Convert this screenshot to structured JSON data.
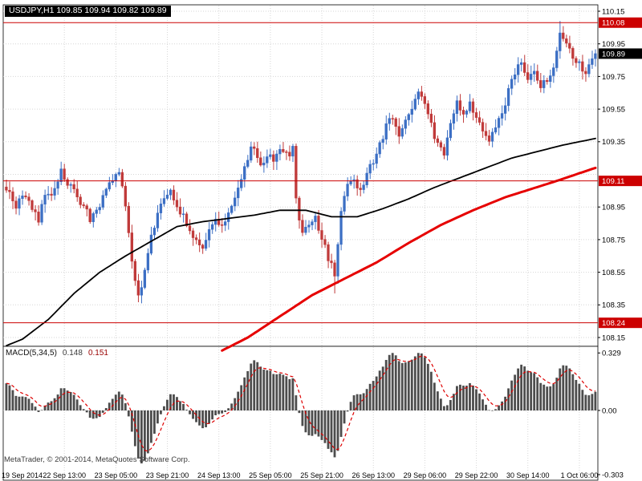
{
  "header": {
    "symbol_info": "USDJPY,H1 109.85 109.94 109.82 109.89"
  },
  "quote": {
    "symbol": "USDJPY",
    "period": "H1",
    "open": "109.85",
    "high": "109.94",
    "low": "109.82",
    "close": "109.89"
  },
  "footer": {
    "copyright": "MetaTrader, © 2001-2014, MetaQuotes Software Corp."
  },
  "colors": {
    "bull": "#3c6fc4",
    "bear": "#c03a3a",
    "ma_fast": "#000000",
    "ma_slow": "#e60000",
    "level": "#cc0000",
    "level_label_bg": "#cc0000",
    "current_label_bg": "#000000",
    "grid": "#d6d6d6",
    "histogram": "#4d4d4d",
    "signal": "#dd0000",
    "axis_text": "#000000",
    "panel_border": "#000000"
  },
  "chart_data": {
    "type": "candlestick",
    "symbol": "USDJPY",
    "timeframe": "H1",
    "bars": 184,
    "price_axis": {
      "min": 108.15,
      "max": 110.15,
      "tick_step": 0.2,
      "ticks": [
        110.15,
        109.95,
        109.75,
        109.55,
        109.35,
        109.15,
        108.95,
        108.75,
        108.55,
        108.35,
        108.15
      ]
    },
    "macd_axis": {
      "max": 0.329,
      "zero": 0.0,
      "min": -0.303,
      "labels": [
        "0.329",
        "0.00",
        "-0.303"
      ]
    },
    "time_labels": [
      "19 Sep 2014",
      "22 Sep 13:00",
      "23 Sep 05:00",
      "23 Sep 21:00",
      "24 Sep 13:00",
      "25 Sep 05:00",
      "25 Sep 21:00",
      "26 Sep 13:00",
      "29 Sep 06:00",
      "29 Sep 22:00",
      "30 Sep 14:00",
      "1 Oct 06:00"
    ],
    "gridline_bars": [
      18,
      34,
      50,
      66,
      82,
      98,
      114,
      130,
      146,
      162,
      178
    ],
    "levels": [
      {
        "price": 110.08,
        "label": "110.08"
      },
      {
        "price": 109.11,
        "label": "109.11"
      },
      {
        "price": 108.24,
        "label": "108.24"
      }
    ],
    "current_price": {
      "price": 109.89,
      "label": "109.89"
    },
    "close_anchors": [
      [
        0,
        109.05
      ],
      [
        3,
        108.96
      ],
      [
        5,
        109.02
      ],
      [
        8,
        108.95
      ],
      [
        10,
        108.88
      ],
      [
        12,
        109.03
      ],
      [
        14,
        109.0
      ],
      [
        17,
        109.16
      ],
      [
        19,
        109.1
      ],
      [
        21,
        109.04
      ],
      [
        23,
        108.98
      ],
      [
        26,
        108.88
      ],
      [
        29,
        108.96
      ],
      [
        32,
        109.1
      ],
      [
        35,
        109.16
      ],
      [
        37,
        108.95
      ],
      [
        39,
        108.62
      ],
      [
        41,
        108.4
      ],
      [
        43,
        108.56
      ],
      [
        45,
        108.76
      ],
      [
        47,
        108.9
      ],
      [
        49,
        109.0
      ],
      [
        51,
        109.06
      ],
      [
        53,
        108.96
      ],
      [
        55,
        108.9
      ],
      [
        57,
        108.8
      ],
      [
        59,
        108.73
      ],
      [
        61,
        108.68
      ],
      [
        63,
        108.8
      ],
      [
        65,
        108.88
      ],
      [
        67,
        108.82
      ],
      [
        69,
        108.9
      ],
      [
        71,
        109.0
      ],
      [
        73,
        109.1
      ],
      [
        75,
        109.26
      ],
      [
        77,
        109.33
      ],
      [
        79,
        109.2
      ],
      [
        81,
        109.28
      ],
      [
        83,
        109.24
      ],
      [
        85,
        109.31
      ],
      [
        87,
        109.27
      ],
      [
        89,
        109.3
      ],
      [
        90,
        108.98
      ],
      [
        92,
        108.78
      ],
      [
        94,
        108.83
      ],
      [
        96,
        108.88
      ],
      [
        98,
        108.76
      ],
      [
        100,
        108.63
      ],
      [
        102,
        108.55
      ],
      [
        104,
        108.92
      ],
      [
        106,
        109.1
      ],
      [
        108,
        109.13
      ],
      [
        110,
        109.05
      ],
      [
        112,
        109.16
      ],
      [
        114,
        109.22
      ],
      [
        116,
        109.33
      ],
      [
        118,
        109.45
      ],
      [
        120,
        109.5
      ],
      [
        122,
        109.4
      ],
      [
        124,
        109.48
      ],
      [
        126,
        109.56
      ],
      [
        128,
        109.68
      ],
      [
        130,
        109.58
      ],
      [
        132,
        109.45
      ],
      [
        134,
        109.32
      ],
      [
        136,
        109.28
      ],
      [
        138,
        109.46
      ],
      [
        140,
        109.58
      ],
      [
        142,
        109.52
      ],
      [
        144,
        109.58
      ],
      [
        146,
        109.5
      ],
      [
        148,
        109.42
      ],
      [
        150,
        109.35
      ],
      [
        152,
        109.43
      ],
      [
        154,
        109.52
      ],
      [
        156,
        109.66
      ],
      [
        158,
        109.78
      ],
      [
        160,
        109.86
      ],
      [
        162,
        109.72
      ],
      [
        164,
        109.78
      ],
      [
        166,
        109.68
      ],
      [
        168,
        109.73
      ],
      [
        170,
        109.82
      ],
      [
        172,
        110.02
      ],
      [
        174,
        109.96
      ],
      [
        176,
        109.88
      ],
      [
        178,
        109.82
      ],
      [
        180,
        109.78
      ],
      [
        182,
        109.86
      ],
      [
        183,
        109.89
      ]
    ],
    "wick_extremes": [
      {
        "bar": 41,
        "low": 108.37
      },
      {
        "bar": 102,
        "low": 108.42
      },
      {
        "bar": 172,
        "high": 110.09
      }
    ],
    "moving_averages": [
      {
        "name": "ma-fast-black",
        "color_key": "ma_fast",
        "width": 1.8,
        "anchors": [
          [
            0,
            108.1
          ],
          [
            5,
            108.14
          ],
          [
            13,
            108.26
          ],
          [
            21,
            108.42
          ],
          [
            29,
            108.55
          ],
          [
            37,
            108.65
          ],
          [
            45,
            108.74
          ],
          [
            53,
            108.83
          ],
          [
            61,
            108.86
          ],
          [
            69,
            108.88
          ],
          [
            77,
            108.9
          ],
          [
            85,
            108.93
          ],
          [
            93,
            108.93
          ],
          [
            101,
            108.89
          ],
          [
            109,
            108.89
          ],
          [
            117,
            108.94
          ],
          [
            125,
            109.0
          ],
          [
            133,
            109.07
          ],
          [
            141,
            109.13
          ],
          [
            149,
            109.19
          ],
          [
            157,
            109.25
          ],
          [
            165,
            109.29
          ],
          [
            173,
            109.33
          ],
          [
            183,
            109.37
          ]
        ]
      },
      {
        "name": "ma-slow-red",
        "color_key": "ma_slow",
        "width": 3,
        "anchors": [
          [
            67,
            108.07
          ],
          [
            75,
            108.15
          ],
          [
            85,
            108.28
          ],
          [
            95,
            108.41
          ],
          [
            105,
            108.51
          ],
          [
            115,
            108.61
          ],
          [
            125,
            108.73
          ],
          [
            135,
            108.84
          ],
          [
            145,
            108.93
          ],
          [
            155,
            109.01
          ],
          [
            163,
            109.06
          ],
          [
            171,
            109.11
          ],
          [
            177,
            109.15
          ],
          [
            183,
            109.19
          ]
        ]
      }
    ],
    "macd": {
      "label": "MACD(5,34,5)",
      "value_main": "0.148",
      "value_signal": "0.151",
      "fast": 5,
      "slow": 34,
      "signal": 5
    }
  }
}
